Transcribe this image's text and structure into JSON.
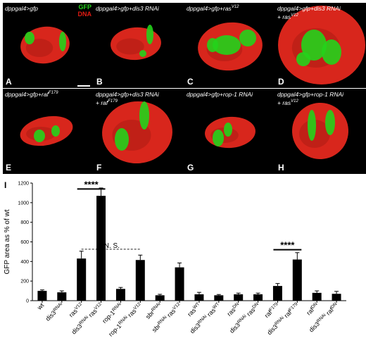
{
  "panels": [
    {
      "letter": "A",
      "caption": "dppgal4>gfp",
      "caption_sup": "",
      "caption2": "",
      "caption2_sup": ""
    },
    {
      "letter": "B",
      "caption": "dppgal4>gfp+dis3 RNAi",
      "caption_sup": "",
      "caption2": "",
      "caption2_sup": ""
    },
    {
      "letter": "C",
      "caption": "dppgal4>gfp+ras",
      "caption_sup": "V12",
      "caption2": "",
      "caption2_sup": ""
    },
    {
      "letter": "D",
      "caption": "dppgal4>gfp+dis3 RNAi",
      "caption_sup": "",
      "caption2": "+ ras",
      "caption2_sup": "V12"
    },
    {
      "letter": "E",
      "caption": "dppgal4>gfp+raf",
      "caption_sup": "F179",
      "caption2": "",
      "caption2_sup": ""
    },
    {
      "letter": "F",
      "caption": "dppgal4>gfp+dis3 RNAi",
      "caption_sup": "",
      "caption2": "+ raf",
      "caption2_sup": "F179"
    },
    {
      "letter": "G",
      "caption": "dppgal4>gfp+rop-1 RNAi",
      "caption_sup": "",
      "caption2": "",
      "caption2_sup": ""
    },
    {
      "letter": "H",
      "caption": "dppgal4>gfp+rop-1 RNAi",
      "caption_sup": "",
      "caption2": "+ ras",
      "caption2_sup": "V12"
    }
  ],
  "legend": {
    "gfp": "GFP",
    "dna": "DNA"
  },
  "colors": {
    "gfp": "#23d31b",
    "dna": "#d8261c",
    "bar": "#000000"
  },
  "chart_panel_letter": "I",
  "chart_data": {
    "type": "bar",
    "ylabel": "GFP area as % of wt",
    "ylim": [
      0,
      1200
    ],
    "yticks": [
      0,
      200,
      400,
      600,
      800,
      1000,
      1200
    ],
    "categories": [
      [
        {
          "t": "wt"
        }
      ],
      [
        {
          "t": "dis3"
        },
        {
          "t": "RNAi",
          "sup": true
        }
      ],
      [
        {
          "t": "ras"
        },
        {
          "t": "V12",
          "sup": true
        }
      ],
      [
        {
          "t": "dis3"
        },
        {
          "t": "RNAi",
          "sup": true
        },
        {
          "t": " ras"
        },
        {
          "t": "V12",
          "sup": true
        }
      ],
      [
        {
          "t": "rop-1"
        },
        {
          "t": "RNAi",
          "sup": true
        }
      ],
      [
        {
          "t": "rop-1"
        },
        {
          "t": "RNAi",
          "sup": true
        },
        {
          "t": " ras"
        },
        {
          "t": "V12",
          "sup": true
        }
      ],
      [
        {
          "t": "sbr"
        },
        {
          "t": "RNAi",
          "sup": true
        }
      ],
      [
        {
          "t": "sbr"
        },
        {
          "t": "RNAi",
          "sup": true
        },
        {
          "t": " ras"
        },
        {
          "t": "V12",
          "sup": true
        }
      ],
      [
        {
          "t": "ras"
        },
        {
          "t": "WT",
          "sup": true
        }
      ],
      [
        {
          "t": "dis3"
        },
        {
          "t": "RNAi",
          "sup": true
        },
        {
          "t": " ras"
        },
        {
          "t": "WT",
          "sup": true
        }
      ],
      [
        {
          "t": "ras"
        },
        {
          "t": "DN",
          "sup": true
        }
      ],
      [
        {
          "t": "dis3"
        },
        {
          "t": "RNAi",
          "sup": true
        },
        {
          "t": " ras"
        },
        {
          "t": "DN",
          "sup": true
        }
      ],
      [
        {
          "t": "raf"
        },
        {
          "t": "F179",
          "sup": true
        }
      ],
      [
        {
          "t": "dis3"
        },
        {
          "t": "RNAi",
          "sup": true
        },
        {
          "t": " raf"
        },
        {
          "t": "F179",
          "sup": true
        }
      ],
      [
        {
          "t": "raf"
        },
        {
          "t": "DN",
          "sup": true
        }
      ],
      [
        {
          "t": "dis3"
        },
        {
          "t": "RNAi",
          "sup": true
        },
        {
          "t": " raf"
        },
        {
          "t": "DN",
          "sup": true
        }
      ]
    ],
    "values": [
      100,
      85,
      430,
      1070,
      120,
      415,
      55,
      340,
      65,
      55,
      65,
      65,
      150,
      420,
      80,
      70
    ],
    "errors": [
      10,
      15,
      75,
      80,
      15,
      50,
      10,
      45,
      20,
      8,
      12,
      12,
      25,
      70,
      20,
      25
    ],
    "annotations": [
      {
        "text": "****",
        "from": 2,
        "to": 3,
        "y": 1140,
        "style": "solid"
      },
      {
        "text": "N. S.",
        "from": 2,
        "to": 5,
        "y": 525,
        "style": "dashed"
      },
      {
        "text": "****",
        "from": 12,
        "to": 13,
        "y": 520,
        "style": "solid"
      }
    ]
  }
}
